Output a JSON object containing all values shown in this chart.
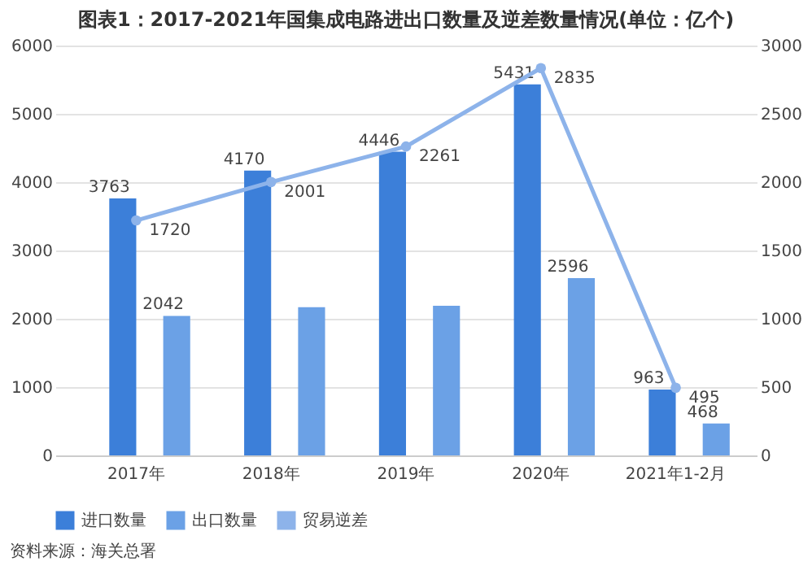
{
  "chart_data": {
    "type": "bar",
    "title": "图表1：2017-2021年国集成电路进出口数量及逆差数量情况(单位：亿个)",
    "categories": [
      "2017年",
      "2018年",
      "2019年",
      "2020年",
      "2021年1-2月"
    ],
    "series": [
      {
        "name": "进口数量",
        "color": "#3c7fd9",
        "values": [
          3763,
          4170,
          4446,
          5431,
          963
        ],
        "value_labels": [
          "3763",
          "4170",
          "4446",
          "5431",
          "963"
        ]
      },
      {
        "name": "出口数量",
        "color": "#6ba1e6",
        "values": [
          2042,
          2170,
          2190,
          2596,
          468
        ],
        "value_labels": [
          "2042",
          null,
          null,
          "2596",
          "468"
        ]
      },
      {
        "name": "贸易逆差",
        "type": "line",
        "axis": "y2",
        "color": "#8db3ea",
        "values": [
          1720,
          2001,
          2261,
          2835,
          495
        ],
        "value_labels": [
          "1720",
          "2001",
          "2261",
          "2835",
          "495"
        ]
      }
    ],
    "ylim": [
      0,
      6000
    ],
    "yticks": [
      0,
      1000,
      2000,
      3000,
      4000,
      5000,
      6000
    ],
    "y2lim": [
      0,
      3000
    ],
    "y2ticks": [
      0,
      500,
      1000,
      1500,
      2000,
      2500,
      3000
    ],
    "grid": "y",
    "legend": "bottom",
    "marker": "circle",
    "annotations": [
      "资料来源：海关总署"
    ]
  }
}
